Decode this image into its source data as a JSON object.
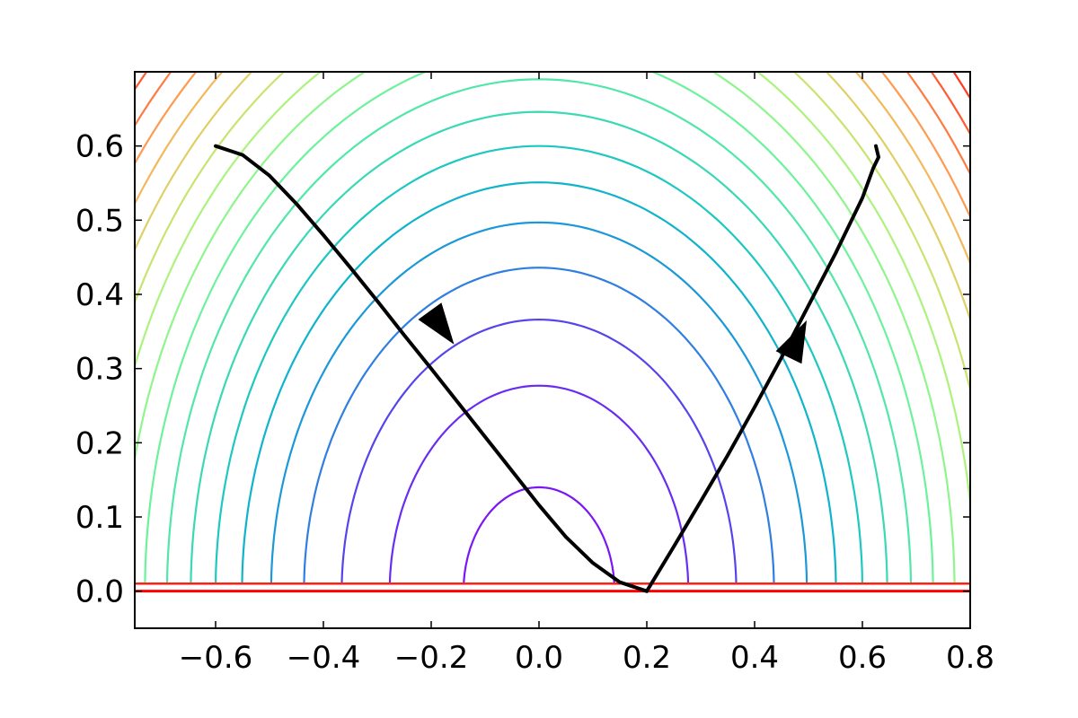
{
  "chart_data": {
    "type": "line",
    "title": "",
    "xlabel": "",
    "ylabel": "",
    "xlim": [
      -0.75,
      0.8
    ],
    "ylim": [
      -0.05,
      0.7
    ],
    "grid": false,
    "legend": "none",
    "x_ticks": [
      {
        "value": -0.6,
        "label": "−0.6"
      },
      {
        "value": -0.4,
        "label": "−0.4"
      },
      {
        "value": -0.2,
        "label": "−0.2"
      },
      {
        "value": 0.0,
        "label": "0.0"
      },
      {
        "value": 0.2,
        "label": "0.2"
      },
      {
        "value": 0.4,
        "label": "0.4"
      },
      {
        "value": 0.6,
        "label": "0.6"
      },
      {
        "value": 0.8,
        "label": "0.8"
      }
    ],
    "y_ticks": [
      {
        "value": 0.0,
        "label": "0.0"
      },
      {
        "value": 0.1,
        "label": "0.1"
      },
      {
        "value": 0.2,
        "label": "0.2"
      },
      {
        "value": 0.3,
        "label": "0.3"
      },
      {
        "value": 0.4,
        "label": "0.4"
      },
      {
        "value": 0.5,
        "label": "0.5"
      },
      {
        "value": 0.6,
        "label": "0.6"
      }
    ],
    "contours": {
      "levels": [
        {
          "radius": 0.14,
          "color": "#7b16f5"
        },
        {
          "radius": 0.277,
          "color": "#6a2cf2"
        },
        {
          "radius": 0.366,
          "color": "#5544ec"
        },
        {
          "radius": 0.436,
          "color": "#2f7ee0"
        },
        {
          "radius": 0.497,
          "color": "#1c98d8"
        },
        {
          "radius": 0.551,
          "color": "#10b3cc"
        },
        {
          "radius": 0.6,
          "color": "#1ec7c0"
        },
        {
          "radius": 0.646,
          "color": "#3ad8b4"
        },
        {
          "radius": 0.69,
          "color": "#52e6a8"
        },
        {
          "radius": 0.731,
          "color": "#6cf29c"
        },
        {
          "radius": 0.771,
          "color": "#8ff58c"
        },
        {
          "radius": 0.809,
          "color": "#aef27e"
        },
        {
          "radius": 0.845,
          "color": "#c8e470"
        },
        {
          "radius": 0.88,
          "color": "#e0cf66"
        },
        {
          "radius": 0.914,
          "color": "#f4b85c"
        },
        {
          "radius": 0.946,
          "color": "#ff9a50"
        },
        {
          "radius": 0.978,
          "color": "#ff7a42"
        },
        {
          "radius": 1.01,
          "color": "#ff5a32"
        },
        {
          "radius": 1.04,
          "color": "#ff3a22"
        },
        {
          "radius": 1.07,
          "color": "#ff1a10"
        }
      ],
      "baseline": {
        "y": 0.0,
        "color": "#ff0000"
      }
    },
    "series": [
      {
        "color": "#000000",
        "x": [
          -0.6,
          -0.55,
          -0.5,
          -0.45,
          -0.4,
          -0.35,
          -0.3,
          -0.25,
          -0.2,
          -0.15,
          -0.1,
          -0.05,
          0.0,
          0.05,
          0.1,
          0.15,
          0.2
        ],
        "y": [
          0.6,
          0.588,
          0.56,
          0.522,
          0.48,
          0.436,
          0.391,
          0.345,
          0.3,
          0.254,
          0.208,
          0.162,
          0.116,
          0.073,
          0.038,
          0.012,
          0.0
        ]
      },
      {
        "color": "#000000",
        "x": [
          0.2,
          0.25,
          0.3,
          0.35,
          0.4,
          0.45,
          0.5,
          0.55,
          0.6,
          0.62,
          0.63,
          0.625
        ],
        "y": [
          0.0,
          0.06,
          0.121,
          0.183,
          0.248,
          0.315,
          0.385,
          0.455,
          0.53,
          0.57,
          0.585,
          0.6
        ]
      }
    ],
    "arrows": [
      {
        "x": -0.18,
        "y": 0.355,
        "dx": 0.04,
        "dy": -0.04
      },
      {
        "x": 0.48,
        "y": 0.34,
        "dx": 0.03,
        "dy": 0.045
      }
    ]
  }
}
